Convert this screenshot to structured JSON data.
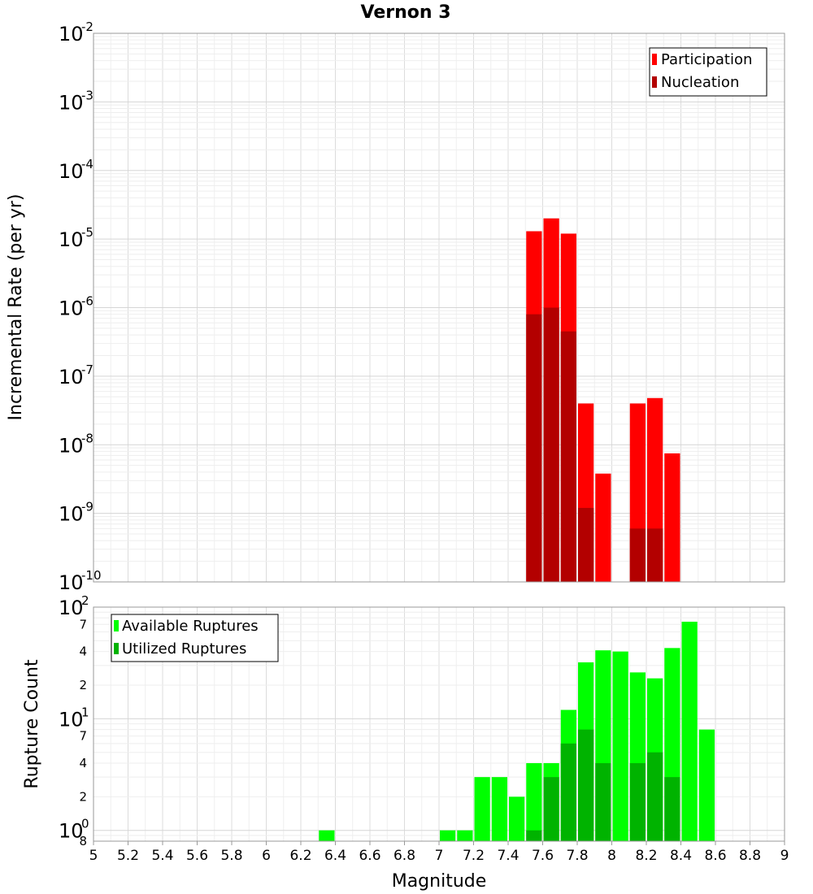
{
  "chart_data": [
    {
      "type": "bar",
      "title": "Vernon 3",
      "ylabel": "Incremental Rate (per yr)",
      "y_scale": "log",
      "ylim": [
        1e-10,
        0.01
      ],
      "xlim": [
        5,
        9
      ],
      "grid": true,
      "legend_position": "top-right",
      "y_ticks": [
        {
          "base": "10",
          "exp": "-2"
        },
        {
          "base": "10",
          "exp": "-3"
        },
        {
          "base": "10",
          "exp": "-4"
        },
        {
          "base": "10",
          "exp": "-5"
        },
        {
          "base": "10",
          "exp": "-6"
        },
        {
          "base": "10",
          "exp": "-7"
        },
        {
          "base": "10",
          "exp": "-8"
        },
        {
          "base": "10",
          "exp": "-9"
        },
        {
          "base": "10",
          "exp": "-10"
        }
      ],
      "series": [
        {
          "name": "Participation",
          "color": "#ff0000",
          "points": [
            {
              "x": 7.55,
              "y": 1.3e-05
            },
            {
              "x": 7.65,
              "y": 2e-05
            },
            {
              "x": 7.75,
              "y": 1.2e-05
            },
            {
              "x": 7.85,
              "y": 4e-08
            },
            {
              "x": 7.95,
              "y": 3.8e-09
            },
            {
              "x": 8.15,
              "y": 4e-08
            },
            {
              "x": 8.25,
              "y": 4.8e-08
            },
            {
              "x": 8.35,
              "y": 7.5e-09
            }
          ]
        },
        {
          "name": "Nucleation",
          "color": "#b30000",
          "points": [
            {
              "x": 7.55,
              "y": 8e-07
            },
            {
              "x": 7.65,
              "y": 1e-06
            },
            {
              "x": 7.75,
              "y": 4.5e-07
            },
            {
              "x": 7.85,
              "y": 1.2e-09
            },
            {
              "x": 8.15,
              "y": 6e-10
            },
            {
              "x": 8.25,
              "y": 6e-10
            }
          ]
        }
      ]
    },
    {
      "type": "bar",
      "ylabel": "Rupture Count",
      "xlabel": "Magnitude",
      "y_scale": "log",
      "ylim": [
        0.8,
        100
      ],
      "xlim": [
        5,
        9
      ],
      "grid": true,
      "legend_position": "top-left",
      "x_tick_labels": [
        "5",
        "5.2",
        "5.4",
        "5.6",
        "5.8",
        "6",
        "6.2",
        "6.4",
        "6.6",
        "6.8",
        "7",
        "7.2",
        "7.4",
        "7.6",
        "7.8",
        "8",
        "8.2",
        "8.4",
        "8.6",
        "8.8",
        "9"
      ],
      "y_ticks": [
        {
          "base": "10",
          "exp": "2"
        },
        {
          "base": "10",
          "exp": "1"
        },
        {
          "base": "10",
          "exp": "0"
        }
      ],
      "y_minor_labels": [
        {
          "value": 70,
          "label": "7"
        },
        {
          "value": 40,
          "label": "4"
        },
        {
          "value": 20,
          "label": "2"
        },
        {
          "value": 7,
          "label": "7"
        },
        {
          "value": 4,
          "label": "4"
        },
        {
          "value": 2,
          "label": "2"
        },
        {
          "value": 0.8,
          "label": "8"
        }
      ],
      "series": [
        {
          "name": "Available Ruptures",
          "color": "#00ff00",
          "points": [
            {
              "x": 6.35,
              "y": 1
            },
            {
              "x": 7.05,
              "y": 1
            },
            {
              "x": 7.15,
              "y": 1
            },
            {
              "x": 7.25,
              "y": 3
            },
            {
              "x": 7.35,
              "y": 3
            },
            {
              "x": 7.45,
              "y": 2
            },
            {
              "x": 7.55,
              "y": 4
            },
            {
              "x": 7.65,
              "y": 4
            },
            {
              "x": 7.75,
              "y": 12
            },
            {
              "x": 7.85,
              "y": 32
            },
            {
              "x": 7.95,
              "y": 41
            },
            {
              "x": 8.05,
              "y": 40
            },
            {
              "x": 8.15,
              "y": 26
            },
            {
              "x": 8.25,
              "y": 23
            },
            {
              "x": 8.35,
              "y": 43
            },
            {
              "x": 8.45,
              "y": 74
            },
            {
              "x": 8.55,
              "y": 8
            }
          ]
        },
        {
          "name": "Utilized Ruptures",
          "color": "#00b300",
          "points": [
            {
              "x": 7.55,
              "y": 1
            },
            {
              "x": 7.65,
              "y": 3
            },
            {
              "x": 7.75,
              "y": 6
            },
            {
              "x": 7.85,
              "y": 8
            },
            {
              "x": 7.95,
              "y": 4
            },
            {
              "x": 8.15,
              "y": 4
            },
            {
              "x": 8.25,
              "y": 5
            },
            {
              "x": 8.35,
              "y": 3
            }
          ]
        }
      ]
    }
  ]
}
